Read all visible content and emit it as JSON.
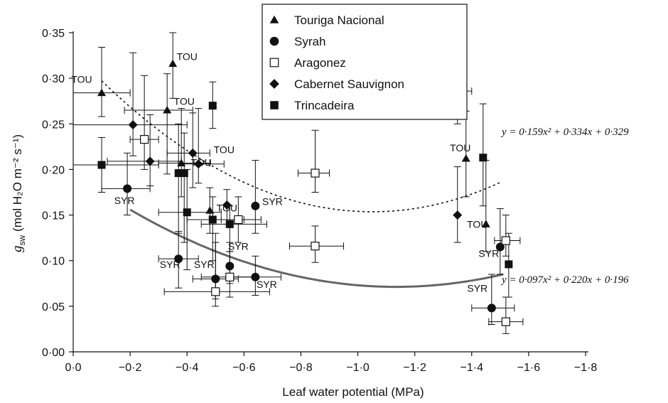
{
  "chart_data": {
    "type": "scatter",
    "xlabel": "Leaf water potential (MPa)",
    "ylabel_main": "g",
    "ylabel_sub": "sw",
    "ylabel_unit": "(mol H₂O m⁻² s⁻¹)",
    "xlim": [
      0.0,
      -1.8
    ],
    "ylim": [
      0.0,
      0.35
    ],
    "x_ticks": [
      0.0,
      -0.2,
      -0.4,
      -0.6,
      -0.8,
      -1.0,
      -1.2,
      -1.4,
      -1.6,
      -1.8
    ],
    "x_tick_labels": [
      "0·0",
      "−0·2",
      "−0·4",
      "−0·6",
      "−0·8",
      "−1·0",
      "−1·2",
      "−1·4",
      "−1·6",
      "−1·8"
    ],
    "y_ticks": [
      0.0,
      0.05,
      0.1,
      0.15,
      0.2,
      0.25,
      0.3,
      0.35
    ],
    "y_tick_labels": [
      "0·00",
      "0·05",
      "0·10",
      "0·15",
      "0·20",
      "0·25",
      "0·30",
      "0·35"
    ],
    "legend": {
      "position": "top-center",
      "entries": [
        {
          "name": "Touriga Nacional",
          "marker": "triangle"
        },
        {
          "name": "Syrah",
          "marker": "circle"
        },
        {
          "name": "Aragonez",
          "marker": "open-square"
        },
        {
          "name": "Cabernet Sauvignon",
          "marker": "diamond"
        },
        {
          "name": "Trincadeira",
          "marker": "square"
        }
      ]
    },
    "series": [
      {
        "name": "Touriga Nacional",
        "marker": "triangle",
        "points": [
          {
            "x": -0.1,
            "y": 0.284,
            "ylo": 0.258,
            "yhi": 0.334,
            "xlo": 0.0,
            "xhi": -0.2
          },
          {
            "x": -0.35,
            "y": 0.316,
            "ylo": 0.278,
            "yhi": 0.35
          },
          {
            "x": -0.33,
            "y": 0.265,
            "ylo": 0.195,
            "yhi": 0.305,
            "xlo": -0.18,
            "xhi": -0.42
          },
          {
            "x": -0.38,
            "y": 0.207,
            "ylo": 0.17,
            "yhi": 0.267,
            "xlo": -0.3,
            "xhi": -0.48
          },
          {
            "x": -0.48,
            "y": 0.155,
            "ylo": 0.13,
            "yhi": 0.18
          },
          {
            "x": -1.38,
            "y": 0.212,
            "ylo": 0.17,
            "yhi": 0.264
          },
          {
            "x": -1.45,
            "y": 0.14,
            "ylo": 0.11,
            "yhi": 0.21
          }
        ]
      },
      {
        "name": "Syrah",
        "marker": "circle",
        "points": [
          {
            "x": -0.19,
            "y": 0.179,
            "ylo": 0.15,
            "yhi": 0.218,
            "xlo": -0.1,
            "xhi": -0.27
          },
          {
            "x": -0.37,
            "y": 0.102,
            "ylo": 0.07,
            "yhi": 0.132,
            "xlo": -0.3,
            "xhi": -0.44
          },
          {
            "x": -0.5,
            "y": 0.08,
            "ylo": 0.058,
            "yhi": 0.13,
            "xlo": -0.42,
            "xhi": -0.58
          },
          {
            "x": -0.55,
            "y": 0.094,
            "ylo": 0.075,
            "yhi": 0.12
          },
          {
            "x": -0.64,
            "y": 0.082,
            "ylo": 0.062,
            "yhi": 0.105,
            "xlo": -0.55,
            "xhi": -0.73
          },
          {
            "x": -0.64,
            "y": 0.16,
            "ylo": 0.13,
            "yhi": 0.21
          },
          {
            "x": -1.47,
            "y": 0.048,
            "ylo": 0.03,
            "yhi": 0.085,
            "xlo": -1.4,
            "xhi": -1.55
          },
          {
            "x": -1.5,
            "y": 0.115,
            "ylo": 0.085,
            "yhi": 0.157
          }
        ]
      },
      {
        "name": "Aragonez",
        "marker": "open-square",
        "points": [
          {
            "x": -0.25,
            "y": 0.233,
            "ylo": 0.2,
            "yhi": 0.303,
            "xlo": -0.2,
            "xhi": -0.3
          },
          {
            "x": -0.5,
            "y": 0.066,
            "ylo": 0.05,
            "yhi": 0.12,
            "xlo": -0.32,
            "xhi": -0.69
          },
          {
            "x": -0.55,
            "y": 0.082,
            "ylo": 0.06,
            "yhi": 0.11,
            "xlo": -0.45,
            "xhi": -0.64
          },
          {
            "x": -0.58,
            "y": 0.145,
            "ylo": 0.12,
            "yhi": 0.17,
            "xlo": -0.52,
            "xhi": -0.66
          },
          {
            "x": -0.85,
            "y": 0.196,
            "ylo": 0.175,
            "yhi": 0.243,
            "xlo": -0.79,
            "xhi": -0.9
          },
          {
            "x": -0.85,
            "y": 0.116,
            "ylo": 0.098,
            "yhi": 0.138,
            "xlo": -0.76,
            "xhi": -0.95
          },
          {
            "x": -1.52,
            "y": 0.122,
            "ylo": 0.105,
            "yhi": 0.15,
            "xlo": -1.48,
            "xhi": -1.57
          },
          {
            "x": -1.52,
            "y": 0.033,
            "ylo": 0.02,
            "yhi": 0.06,
            "xlo": -1.46,
            "xhi": -1.58
          }
        ]
      },
      {
        "name": "Cabernet Sauvignon",
        "marker": "diamond",
        "points": [
          {
            "x": -0.21,
            "y": 0.249,
            "ylo": 0.215,
            "yhi": 0.328,
            "xlo": 0.07,
            "xhi": -0.4
          },
          {
            "x": -0.27,
            "y": 0.209,
            "ylo": 0.182,
            "yhi": 0.26,
            "xlo": -0.12,
            "xhi": -0.38
          },
          {
            "x": -0.42,
            "y": 0.218,
            "ylo": 0.18,
            "yhi": 0.262,
            "xlo": -0.33,
            "xhi": -0.48
          },
          {
            "x": -0.44,
            "y": 0.206,
            "ylo": 0.185,
            "yhi": 0.267,
            "xlo": -0.37,
            "xhi": -0.53
          },
          {
            "x": -0.54,
            "y": 0.161,
            "ylo": 0.14,
            "yhi": 0.178
          },
          {
            "x": -1.35,
            "y": 0.286,
            "ylo": 0.25,
            "yhi": 0.347,
            "xlo": -1.31,
            "xhi": -1.4
          },
          {
            "x": -1.35,
            "y": 0.15,
            "ylo": 0.12,
            "yhi": 0.203
          }
        ]
      },
      {
        "name": "Trincadeira",
        "marker": "square",
        "points": [
          {
            "x": -0.1,
            "y": 0.205,
            "ylo": 0.175,
            "yhi": 0.235,
            "xlo": 0.07,
            "xhi": -0.3
          },
          {
            "x": -0.37,
            "y": 0.196,
            "ylo": 0.13,
            "yhi": 0.25
          },
          {
            "x": -0.39,
            "y": 0.196,
            "ylo": 0.12,
            "yhi": 0.24
          },
          {
            "x": -0.49,
            "y": 0.27,
            "ylo": 0.245,
            "yhi": 0.296
          },
          {
            "x": -0.4,
            "y": 0.153,
            "ylo": 0.09,
            "yhi": 0.2,
            "xlo": -0.3,
            "xhi": -0.52
          },
          {
            "x": -0.49,
            "y": 0.145,
            "ylo": 0.1,
            "yhi": 0.17,
            "xlo": -0.4,
            "xhi": -0.6
          },
          {
            "x": -0.55,
            "y": 0.14,
            "ylo": 0.11,
            "yhi": 0.16,
            "xlo": -0.45,
            "xhi": -0.68
          },
          {
            "x": -1.44,
            "y": 0.213,
            "ylo": 0.16,
            "yhi": 0.272
          },
          {
            "x": -1.53,
            "y": 0.096,
            "ylo": 0.06,
            "yhi": 0.13
          }
        ]
      }
    ],
    "fits": [
      {
        "style": "dotted",
        "equation": "y = 0·159x² + 0·334x + 0·329",
        "a": 0.159,
        "b": 0.334,
        "c": 0.329,
        "xfrom": -0.1,
        "xto": -1.5
      },
      {
        "style": "solid",
        "equation": "y = 0·097x² + 0·220x + 0·196",
        "a": 0.097,
        "b": 0.22,
        "c": 0.196,
        "xfrom": -0.2,
        "xto": -1.51
      }
    ],
    "annotations": [
      {
        "text": "TOU",
        "x": -0.03,
        "y": 0.295
      },
      {
        "text": "TOU",
        "x": -0.4,
        "y": 0.32
      },
      {
        "text": "TOU",
        "x": -0.39,
        "y": 0.271
      },
      {
        "text": "TOU",
        "x": -0.53,
        "y": 0.218
      },
      {
        "text": "TOU",
        "x": -0.45,
        "y": 0.204
      },
      {
        "text": "TOU",
        "x": -0.54,
        "y": 0.154
      },
      {
        "text": "TOU",
        "x": -1.36,
        "y": 0.22
      },
      {
        "text": "TOU",
        "x": -1.42,
        "y": 0.136
      },
      {
        "text": "SYR",
        "x": -0.18,
        "y": 0.162
      },
      {
        "text": "SYR",
        "x": -0.34,
        "y": 0.092
      },
      {
        "text": "SYR",
        "x": -0.46,
        "y": 0.092
      },
      {
        "text": "SYR",
        "x": -0.58,
        "y": 0.112
      },
      {
        "text": "SYR",
        "x": -0.68,
        "y": 0.07
      },
      {
        "text": "SYR",
        "x": -0.7,
        "y": 0.161
      },
      {
        "text": "SYR",
        "x": -1.46,
        "y": 0.104
      },
      {
        "text": "SYR",
        "x": -1.42,
        "y": 0.066
      }
    ]
  }
}
